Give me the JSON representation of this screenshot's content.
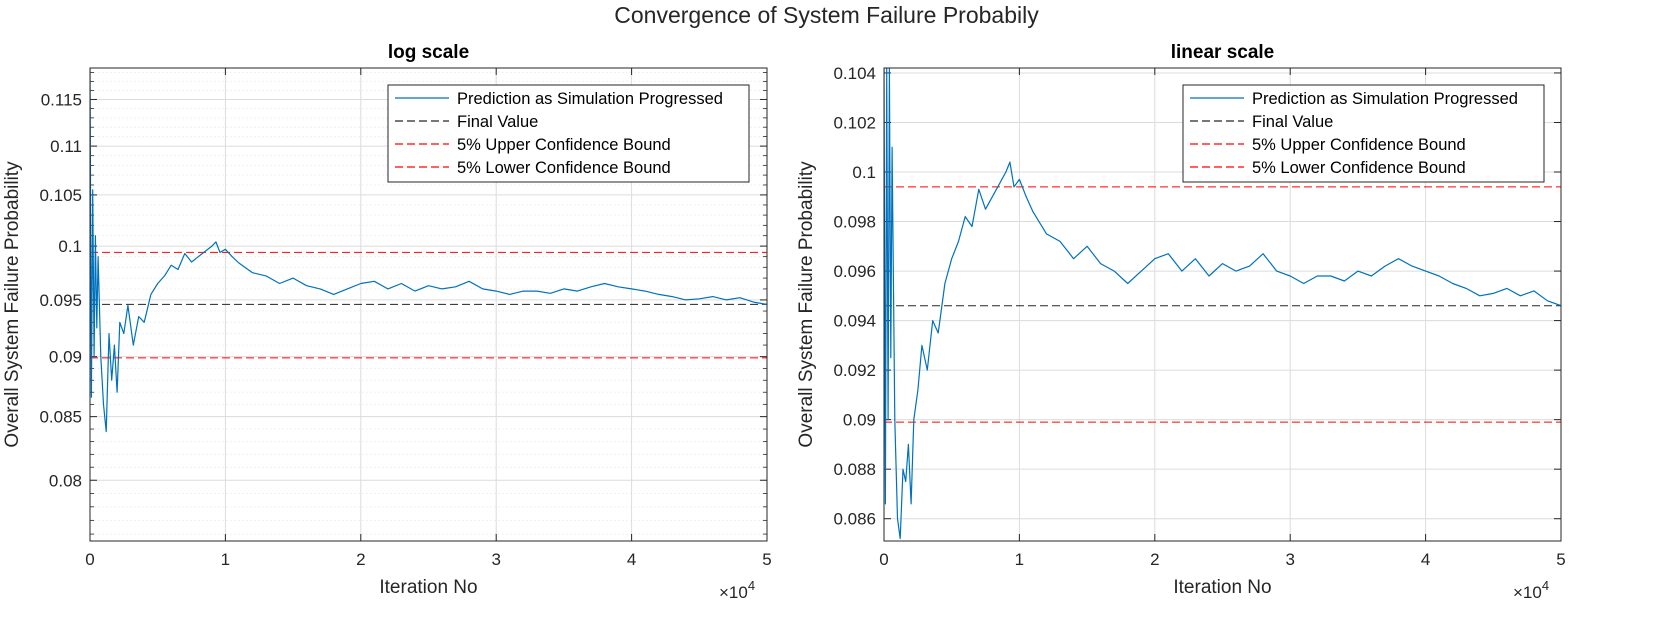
{
  "figure": {
    "title": "Convergence of System Failure Probabily"
  },
  "chart_data": [
    {
      "type": "line",
      "title": "log scale",
      "xlabel": "Iteration No",
      "ylabel": "Overall System Failure Probability",
      "x_exponent_label": "×10",
      "x_exponent": "4",
      "yscale": "log",
      "xlim": [
        0,
        50000
      ],
      "ylim": [
        0.0755,
        0.1185
      ],
      "xticks": [
        0,
        10000,
        20000,
        30000,
        40000,
        50000
      ],
      "xtick_labels": [
        "0",
        "1",
        "2",
        "3",
        "4",
        "5"
      ],
      "yticks": [
        0.08,
        0.085,
        0.09,
        0.095,
        0.1,
        0.105,
        0.11,
        0.115
      ],
      "ytick_labels": [
        "0.08",
        "0.085",
        "0.09",
        "0.095",
        "0.1",
        "0.105",
        "0.11",
        "0.115"
      ],
      "grid": true,
      "minor_grid": true,
      "legend_location": "top-right",
      "legend": [
        "Prediction as Simulation Progressed",
        "Final Value",
        "5% Upper Confidence Bound",
        "5% Lower Confidence Bound"
      ],
      "colors": {
        "prediction": "#0072bd",
        "final": "#262626",
        "bounds": "#ff0000"
      },
      "final_value": 0.0946,
      "upper_bound": 0.0994,
      "lower_bound": 0.0899,
      "series_x": [
        0,
        100,
        200,
        300,
        400,
        500,
        600,
        800,
        1000,
        1200,
        1400,
        1600,
        1800,
        2000,
        2200,
        2500,
        2800,
        3200,
        3600,
        4000,
        4500,
        5000,
        5500,
        6000,
        6500,
        7000,
        7500,
        8000,
        8500,
        9000,
        9300,
        9600,
        10000,
        10500,
        11000,
        12000,
        13000,
        14000,
        15000,
        16000,
        17000,
        18000,
        19000,
        20000,
        21000,
        22000,
        23000,
        24000,
        25000,
        26000,
        27000,
        28000,
        29000,
        30000,
        31000,
        32000,
        33000,
        34000,
        35000,
        36000,
        37000,
        38000,
        39000,
        40000,
        41000,
        42000,
        43000,
        44000,
        45000,
        46000,
        47000,
        48000,
        49000,
        50000
      ],
      "series_y": [
        0.1185,
        0.0866,
        0.1055,
        0.09,
        0.101,
        0.0925,
        0.099,
        0.09,
        0.086,
        0.0838,
        0.092,
        0.088,
        0.091,
        0.087,
        0.093,
        0.092,
        0.0945,
        0.091,
        0.0935,
        0.093,
        0.0955,
        0.0965,
        0.0972,
        0.0982,
        0.0978,
        0.0993,
        0.0985,
        0.099,
        0.0995,
        0.1,
        0.1004,
        0.0994,
        0.0997,
        0.099,
        0.0984,
        0.0975,
        0.0972,
        0.0965,
        0.097,
        0.0963,
        0.096,
        0.0955,
        0.096,
        0.0965,
        0.0967,
        0.096,
        0.0965,
        0.0958,
        0.0963,
        0.096,
        0.0962,
        0.0967,
        0.096,
        0.0958,
        0.0955,
        0.0958,
        0.0958,
        0.0956,
        0.096,
        0.0958,
        0.0962,
        0.0965,
        0.0962,
        0.096,
        0.0958,
        0.0955,
        0.0953,
        0.095,
        0.0951,
        0.0953,
        0.095,
        0.0952,
        0.0948,
        0.0946
      ]
    },
    {
      "type": "line",
      "title": "linear scale",
      "xlabel": "Iteration No",
      "ylabel": "Overall System Failure Probability",
      "x_exponent_label": "×10",
      "x_exponent": "4",
      "yscale": "linear",
      "xlim": [
        0,
        50000
      ],
      "ylim": [
        0.0851,
        0.1042
      ],
      "xticks": [
        0,
        10000,
        20000,
        30000,
        40000,
        50000
      ],
      "xtick_labels": [
        "0",
        "1",
        "2",
        "3",
        "4",
        "5"
      ],
      "yticks": [
        0.086,
        0.088,
        0.09,
        0.092,
        0.094,
        0.096,
        0.098,
        0.1,
        0.102,
        0.104
      ],
      "ytick_labels": [
        "0.086",
        "0.088",
        "0.09",
        "0.092",
        "0.094",
        "0.096",
        "0.098",
        "0.1",
        "0.102",
        "0.104"
      ],
      "grid": true,
      "minor_grid": false,
      "legend_location": "top-right",
      "legend": [
        "Prediction as Simulation Progressed",
        "Final Value",
        "5% Upper Confidence Bound",
        "5% Lower Confidence Bound"
      ],
      "colors": {
        "prediction": "#0072bd",
        "final": "#262626",
        "bounds": "#ff0000"
      },
      "final_value": 0.0946,
      "upper_bound": 0.0994,
      "lower_bound": 0.0899,
      "series_x": [
        0,
        100,
        200,
        300,
        400,
        500,
        600,
        800,
        1000,
        1200,
        1400,
        1600,
        1800,
        2000,
        2200,
        2500,
        2800,
        3200,
        3600,
        4000,
        4500,
        5000,
        5500,
        6000,
        6500,
        7000,
        7500,
        8000,
        8500,
        9000,
        9300,
        9600,
        10000,
        10500,
        11000,
        12000,
        13000,
        14000,
        15000,
        16000,
        17000,
        18000,
        19000,
        20000,
        21000,
        22000,
        23000,
        24000,
        25000,
        26000,
        27000,
        28000,
        29000,
        30000,
        31000,
        32000,
        33000,
        34000,
        35000,
        36000,
        37000,
        38000,
        39000,
        40000,
        41000,
        42000,
        43000,
        44000,
        45000,
        46000,
        47000,
        48000,
        49000,
        50000
      ],
      "series_y": [
        0.1042,
        0.0866,
        0.1042,
        0.09,
        0.1042,
        0.0925,
        0.101,
        0.09,
        0.086,
        0.0852,
        0.088,
        0.0875,
        0.089,
        0.0866,
        0.09,
        0.0912,
        0.093,
        0.092,
        0.094,
        0.0935,
        0.0955,
        0.0965,
        0.0972,
        0.0982,
        0.0978,
        0.0993,
        0.0985,
        0.099,
        0.0995,
        0.1,
        0.1004,
        0.0994,
        0.0997,
        0.099,
        0.0984,
        0.0975,
        0.0972,
        0.0965,
        0.097,
        0.0963,
        0.096,
        0.0955,
        0.096,
        0.0965,
        0.0967,
        0.096,
        0.0965,
        0.0958,
        0.0963,
        0.096,
        0.0962,
        0.0967,
        0.096,
        0.0958,
        0.0955,
        0.0958,
        0.0958,
        0.0956,
        0.096,
        0.0958,
        0.0962,
        0.0965,
        0.0962,
        0.096,
        0.0958,
        0.0955,
        0.0953,
        0.095,
        0.0951,
        0.0953,
        0.095,
        0.0952,
        0.0948,
        0.0946
      ]
    }
  ]
}
